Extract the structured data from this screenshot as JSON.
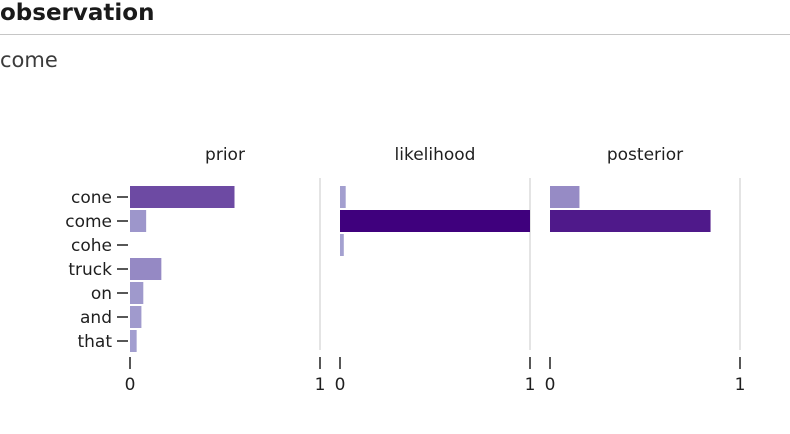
{
  "header": {
    "title": "observation"
  },
  "observation": {
    "value": "come"
  },
  "chart_data": {
    "type": "bar",
    "orientation": "horizontal",
    "categories": [
      "cone",
      "come",
      "cohe",
      "truck",
      "on",
      "and",
      "that"
    ],
    "xlim": [
      0,
      1
    ],
    "ticks": [
      0,
      1
    ],
    "grid": "vertical at x=1",
    "panels": [
      {
        "title": "prior",
        "values": [
          0.55,
          0.085,
          0.0,
          0.165,
          0.07,
          0.06,
          0.035
        ]
      },
      {
        "title": "likelihood",
        "values": [
          0.03,
          1.0,
          0.02,
          0.0,
          0.0,
          0.0,
          0.0
        ]
      },
      {
        "title": "posterior",
        "values": [
          0.155,
          0.845,
          0.0,
          0.0,
          0.0,
          0.0,
          0.0
        ]
      }
    ],
    "colors": {
      "low": "#a6a4d2",
      "high": "#3f007d"
    }
  }
}
